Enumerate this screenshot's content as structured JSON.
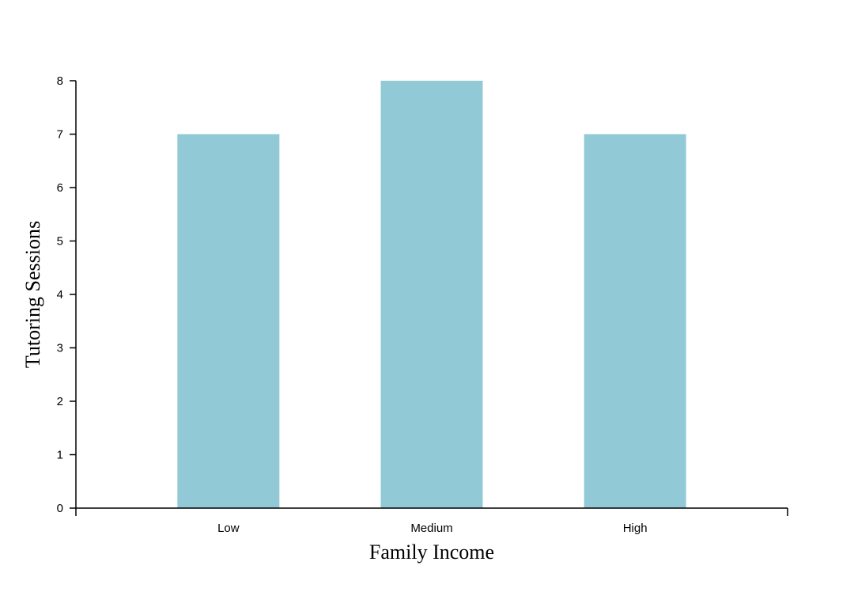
{
  "chart_data": {
    "type": "bar",
    "title": "",
    "xlabel": "Family Income",
    "ylabel": "Tutoring Sessions",
    "categories": [
      "Low",
      "Medium",
      "High"
    ],
    "values": [
      7,
      8,
      7
    ],
    "ylim": [
      0,
      8
    ],
    "yticks": [
      0,
      1,
      2,
      3,
      4,
      5,
      6,
      7,
      8
    ],
    "grid": false,
    "legend": "none",
    "bar_color": "#91c9d6"
  }
}
